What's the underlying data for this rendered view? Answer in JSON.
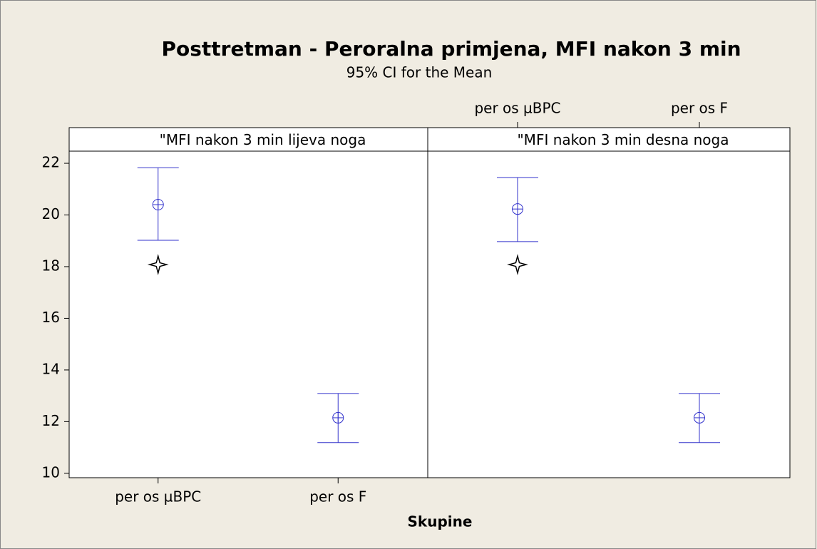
{
  "chart_data": {
    "type": "interval",
    "title": "Posttretman - Peroralna primjena, MFI nakon 3 min",
    "subtitle": "95% CI for the Mean",
    "xlabel": "Skupine",
    "categories": [
      "per os µBPC",
      "per os F"
    ],
    "ylim": [
      9.83,
      22.47
    ],
    "yticks": [
      10,
      12,
      14,
      16,
      18,
      20,
      22
    ],
    "color": "#3333cc",
    "star_color": "#000000",
    "panels": [
      {
        "name": "\"MFI nakon 3 min lijeva noga",
        "means": [
          20.4,
          12.15
        ],
        "lower": [
          19.02,
          11.19
        ],
        "upper": [
          21.83,
          13.09
        ],
        "stars": [
          18.08,
          null
        ]
      },
      {
        "name": "\"MFI nakon 3 min desna noga",
        "means": [
          20.23,
          12.15
        ],
        "lower": [
          18.97,
          11.19
        ],
        "upper": [
          21.45,
          13.09
        ],
        "stars": [
          18.08,
          null
        ]
      }
    ]
  }
}
